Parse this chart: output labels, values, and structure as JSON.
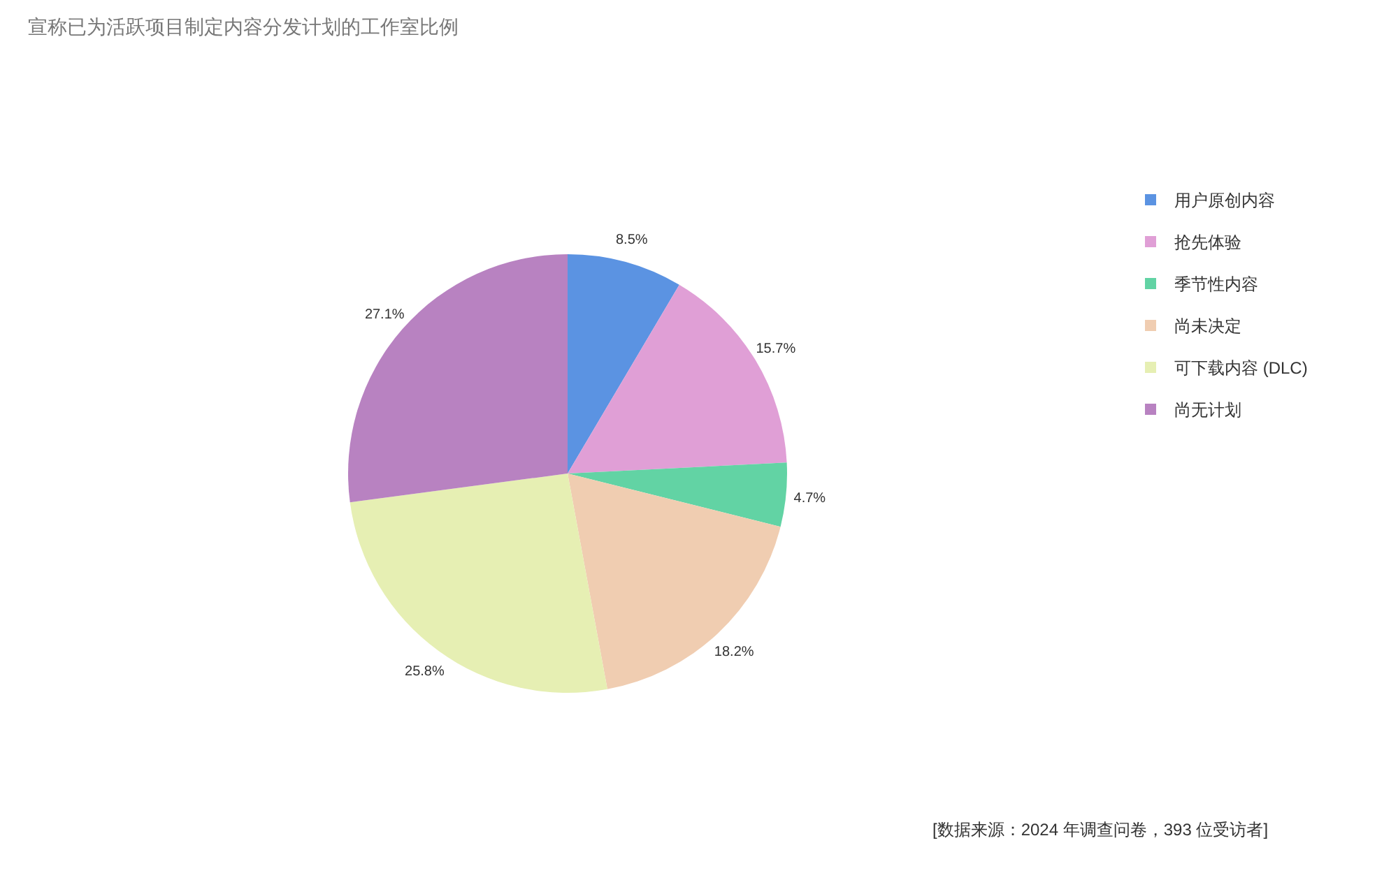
{
  "chart_data": {
    "type": "pie",
    "title": "宣称已为活跃项目制定内容分发计划的工作室比例",
    "categories": [
      "用户原创内容",
      "抢先体验",
      "季节性内容",
      "尚未决定",
      "可下载内容 (DLC)",
      "尚无计划"
    ],
    "values": [
      8.5,
      15.7,
      4.7,
      18.2,
      25.8,
      27.1
    ],
    "value_labels": [
      "8.5%",
      "15.7%",
      "4.7%",
      "18.2%",
      "25.8%",
      "27.1%"
    ],
    "colors": [
      "#5b93e2",
      "#e09fd6",
      "#62d3a4",
      "#f0cdb1",
      "#e6efb3",
      "#b882c1"
    ],
    "legend": "right",
    "annotations": [
      "[数据来源：2024 年调查问卷，393 位受访者]"
    ]
  }
}
